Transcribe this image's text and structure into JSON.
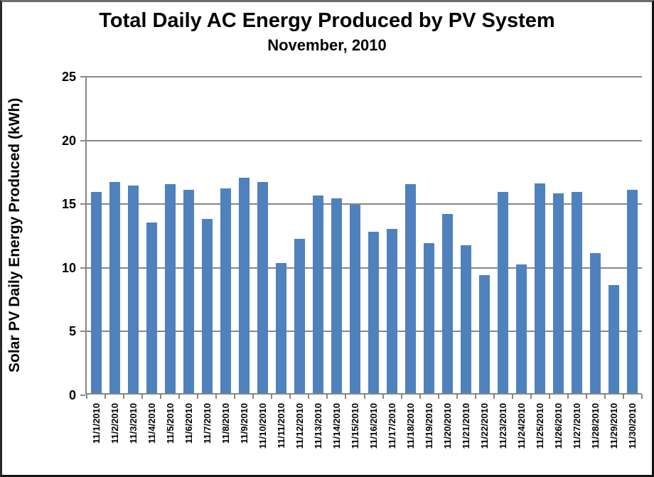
{
  "chart": {
    "title": "Total Daily AC Energy Produced by PV System",
    "subtitle": "November, 2010",
    "ylabel": "Solar PV Daily Energy Produced (kWh)"
  },
  "colors": {
    "bar": "#4F81BD",
    "grid": "#878787",
    "text": "#000000"
  },
  "chart_data": {
    "type": "bar",
    "title": "Total Daily AC Energy Produced by PV System",
    "subtitle": "November, 2010",
    "xlabel": "",
    "ylabel": "Solar PV Daily Energy Produced (kWh)",
    "ylim": [
      0,
      25
    ],
    "yticks": [
      0,
      5,
      10,
      15,
      20,
      25
    ],
    "grid": true,
    "legend": false,
    "bar_color": "#4F81BD",
    "categories": [
      "11/1/2010",
      "11/2/2010",
      "11/3/2010",
      "11/4/2010",
      "11/5/2010",
      "11/6/2010",
      "11/7/2010",
      "11/8/2010",
      "11/9/2010",
      "11/10/2010",
      "11/11/2010",
      "11/12/2010",
      "11/13/2010",
      "11/14/2010",
      "11/15/2010",
      "11/16/2010",
      "11/17/2010",
      "11/18/2010",
      "11/19/2010",
      "11/20/2010",
      "11/21/2010",
      "11/22/2010",
      "11/23/2010",
      "11/24/2010",
      "11/25/2010",
      "11/26/2010",
      "11/27/2010",
      "11/28/2010",
      "11/29/2010",
      "11/30/2010"
    ],
    "values": [
      15.9,
      16.7,
      16.4,
      13.5,
      16.5,
      16.1,
      13.8,
      16.2,
      17.0,
      16.7,
      10.3,
      12.2,
      15.6,
      15.4,
      14.9,
      12.8,
      13.0,
      16.5,
      11.9,
      14.2,
      11.7,
      9.4,
      15.9,
      10.2,
      16.6,
      15.8,
      15.9,
      11.1,
      8.6,
      16.1
    ]
  }
}
